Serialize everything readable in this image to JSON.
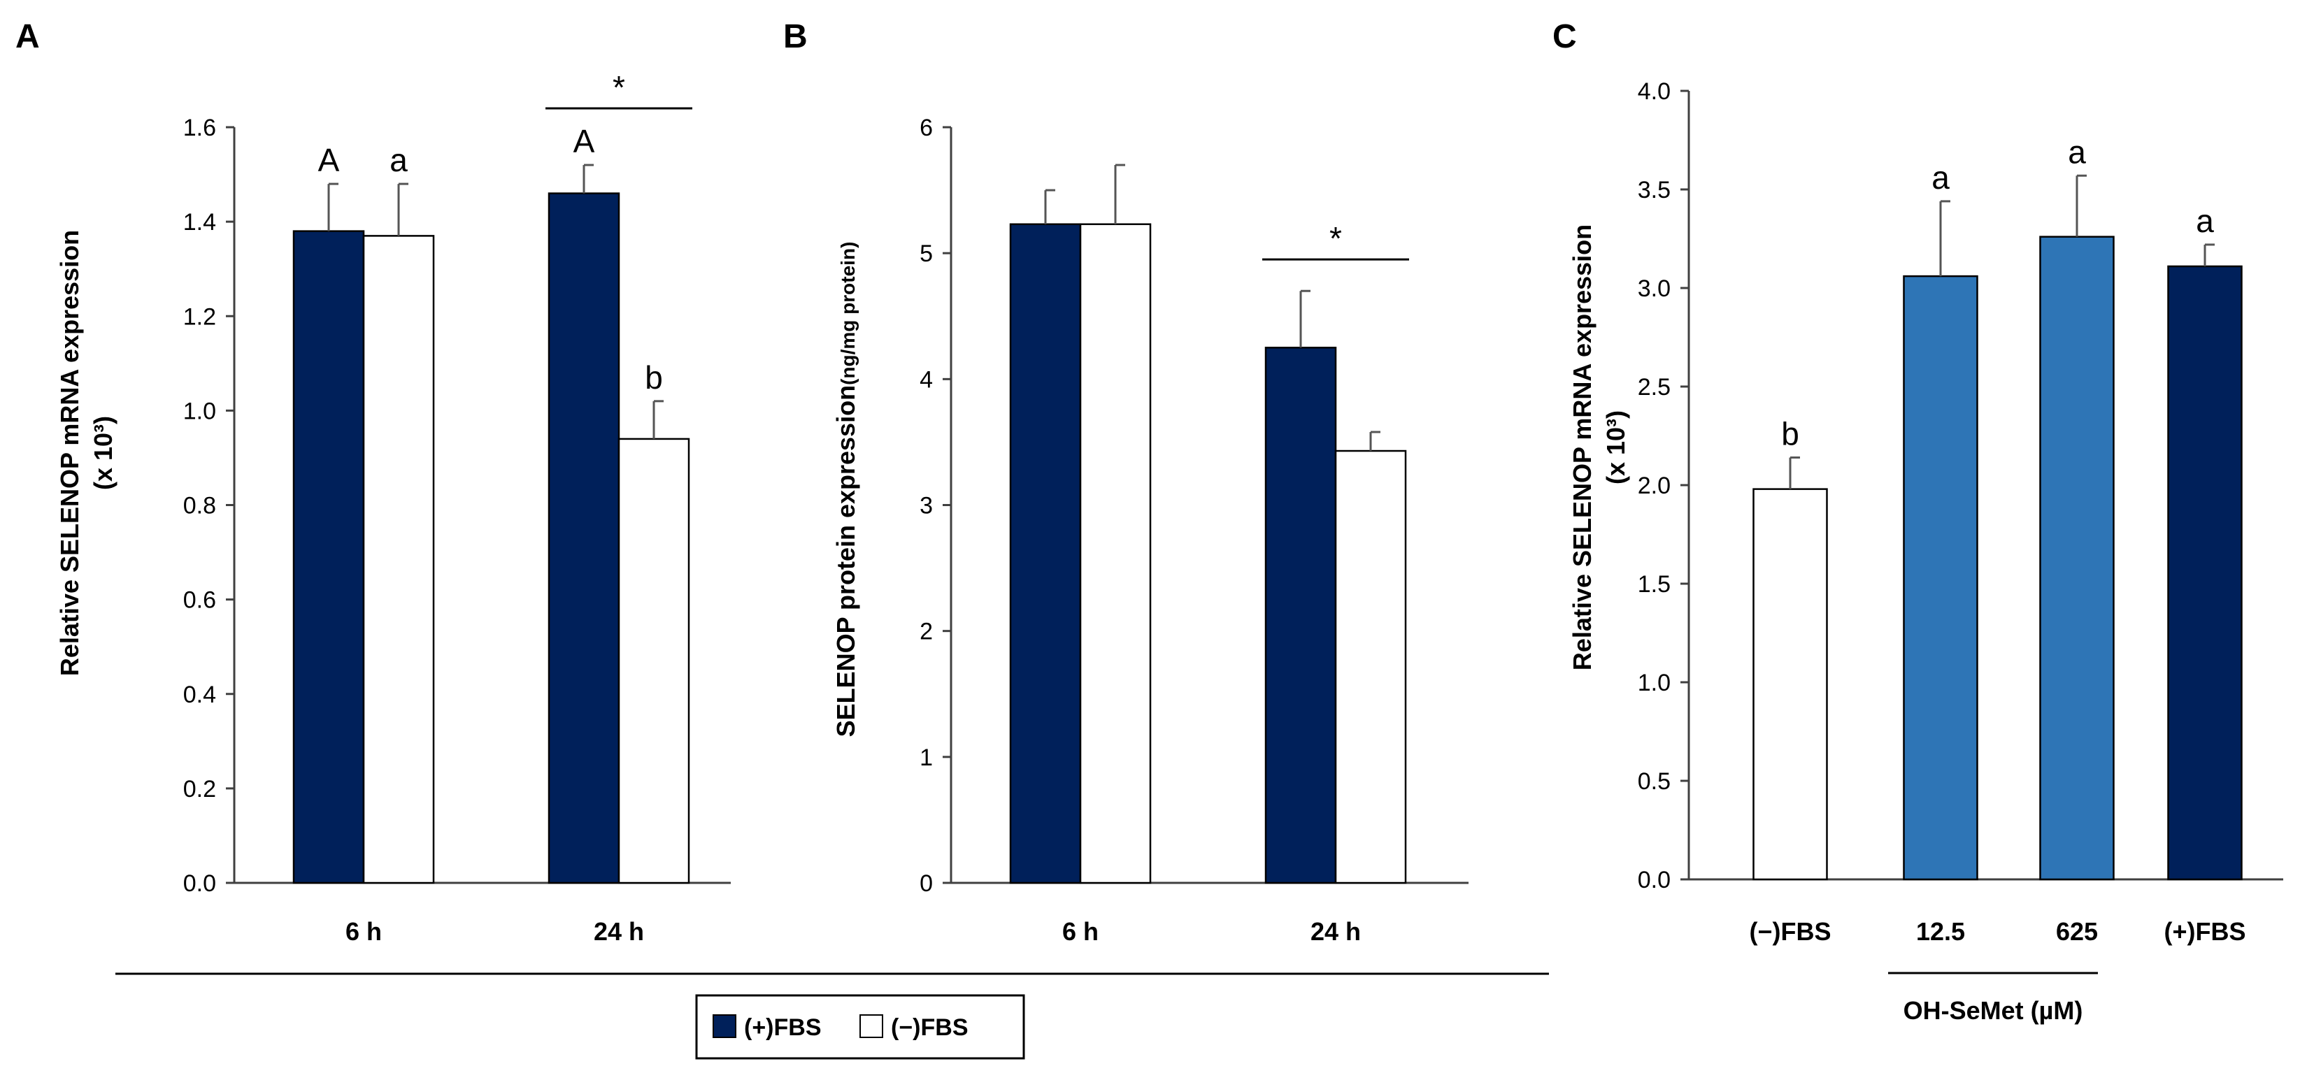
{
  "colors": {
    "plus_fbs": "#00205a",
    "minus_fbs": "#ffffff",
    "oh_semet": "#2e75b6",
    "axis": "#404040",
    "error_bar": "#555555"
  },
  "legend": {
    "items": [
      {
        "label": "(+)FBS",
        "color": "#00205a"
      },
      {
        "label": "(−)FBS",
        "color": "#ffffff"
      }
    ]
  },
  "chart_data": [
    {
      "panel": "A",
      "type": "bar",
      "ylabel_line1": "Relative SELENOP mRNA expression",
      "ylabel_line2": "(x 10³)",
      "ylim": [
        0,
        1.6
      ],
      "yticks": [
        "0.0",
        "0.2",
        "0.4",
        "0.6",
        "0.8",
        "1.0",
        "1.2",
        "1.4",
        "1.6"
      ],
      "categories": [
        "6 h",
        "24 h"
      ],
      "series": [
        {
          "name": "(+)FBS",
          "values": [
            1.38,
            1.46
          ],
          "errors": [
            0.1,
            0.06
          ],
          "labels": [
            "A",
            "A"
          ]
        },
        {
          "name": "(−)FBS",
          "values": [
            1.37,
            0.94
          ],
          "errors": [
            0.11,
            0.08
          ],
          "labels": [
            "a",
            "b"
          ]
        }
      ],
      "significance": {
        "category": "24 h",
        "symbol": "*",
        "y": 1.64
      }
    },
    {
      "panel": "B",
      "type": "bar",
      "ylabel_main": "SELENOP protein expression",
      "ylabel_unit": "(ng/mg protein)",
      "ylim": [
        0,
        6
      ],
      "yticks": [
        "0",
        "1",
        "2",
        "3",
        "4",
        "5",
        "6"
      ],
      "categories": [
        "6 h",
        "24 h"
      ],
      "series": [
        {
          "name": "(+)FBS",
          "values": [
            5.23,
            4.25
          ],
          "errors": [
            0.27,
            0.45
          ],
          "labels": [
            "",
            ""
          ]
        },
        {
          "name": "(−)FBS",
          "values": [
            5.23,
            3.43
          ],
          "errors": [
            0.47,
            0.15
          ],
          "labels": [
            "",
            ""
          ]
        }
      ],
      "significance": {
        "category": "24 h",
        "symbol": "*",
        "y": 4.95
      }
    },
    {
      "panel": "C",
      "type": "bar",
      "ylabel_line1": "Relative SELENOP mRNA expression",
      "ylabel_line2": "(x 10³)",
      "ylim": [
        0,
        4.0
      ],
      "yticks": [
        "0.0",
        "0.5",
        "1.0",
        "1.5",
        "2.0",
        "2.5",
        "3.0",
        "3.5",
        "4.0"
      ],
      "categories": [
        "(−)FBS",
        "12.5",
        "625",
        "(+)FBS"
      ],
      "values": [
        1.98,
        3.06,
        3.26,
        3.11
      ],
      "errors": [
        0.16,
        0.38,
        0.31,
        0.11
      ],
      "labels": [
        "b",
        "a",
        "a",
        "a"
      ],
      "bar_colors": [
        "#ffffff",
        "#2e75b6",
        "#2e75b6",
        "#00205a"
      ],
      "group_label": "OH-SeMet (µM)"
    }
  ]
}
